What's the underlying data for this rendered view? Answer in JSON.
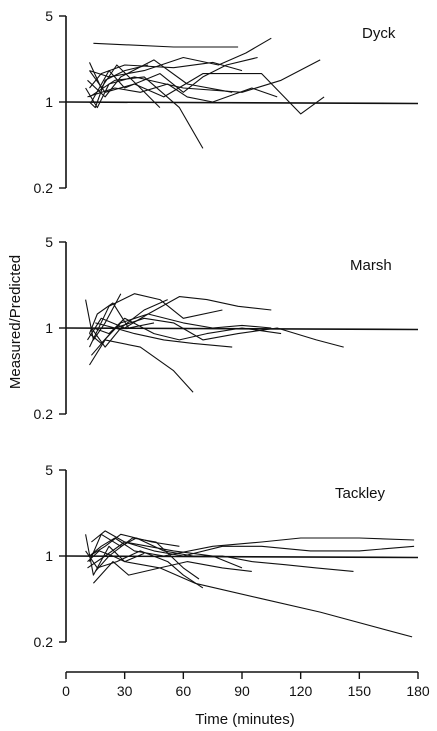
{
  "chart_data": [
    {
      "type": "line",
      "panel_label": "Dyck",
      "y_scale": "log",
      "ylim": [
        0.2,
        5
      ],
      "yticks": [
        0.2,
        1,
        5
      ],
      "xlim": [
        0,
        180
      ],
      "reference_line": 1,
      "series": [
        {
          "x": [
            14,
            55,
            88
          ],
          "y": [
            3.0,
            2.8,
            2.8
          ]
        },
        {
          "x": [
            12,
            22,
            40,
            60,
            78,
            92,
            105
          ],
          "y": [
            1.8,
            1.6,
            1.8,
            2.3,
            2.0,
            2.5,
            3.3
          ]
        },
        {
          "x": [
            12,
            18,
            30,
            55,
            75,
            90
          ],
          "y": [
            1.3,
            1.7,
            2.0,
            1.9,
            2.1,
            1.8
          ]
        },
        {
          "x": [
            12,
            25,
            40,
            58,
            70
          ],
          "y": [
            1.1,
            1.5,
            1.6,
            0.9,
            0.42
          ]
        },
        {
          "x": [
            10,
            16,
            22,
            35,
            60,
            90,
            110,
            130
          ],
          "y": [
            1.3,
            0.9,
            1.4,
            1.6,
            1.3,
            1.2,
            1.5,
            2.2
          ]
        },
        {
          "x": [
            12,
            20,
            35,
            50,
            70,
            100,
            120,
            132
          ],
          "y": [
            1.8,
            1.2,
            1.4,
            1.1,
            1.7,
            1.7,
            0.8,
            1.1
          ]
        },
        {
          "x": [
            11,
            20,
            28,
            45,
            62,
            85
          ],
          "y": [
            1.5,
            1.1,
            1.6,
            2.2,
            1.4,
            1.2
          ]
        },
        {
          "x": [
            12,
            18,
            26,
            38,
            48
          ],
          "y": [
            2.1,
            1.3,
            2.0,
            1.3,
            0.9
          ]
        },
        {
          "x": [
            13,
            22,
            30,
            48,
            60,
            70,
            82,
            98
          ],
          "y": [
            1.0,
            1.8,
            1.3,
            1.7,
            1.2,
            1.6,
            2.0,
            2.3
          ]
        },
        {
          "x": [
            11,
            25,
            38,
            52,
            62,
            75,
            95,
            108
          ],
          "y": [
            1.1,
            1.3,
            1.2,
            1.4,
            1.1,
            1.0,
            1.3,
            1.1
          ]
        },
        {
          "x": [
            12,
            15,
            20,
            30,
            42
          ],
          "y": [
            1.0,
            0.9,
            1.5,
            1.8,
            2.0
          ]
        }
      ]
    },
    {
      "type": "line",
      "panel_label": "Marsh",
      "y_scale": "log",
      "ylim": [
        0.2,
        5
      ],
      "yticks": [
        0.2,
        1,
        5
      ],
      "xlim": [
        0,
        180
      ],
      "reference_line": 1,
      "series": [
        {
          "x": [
            10,
            14,
            20,
            28
          ],
          "y": [
            1.7,
            0.8,
            1.1,
            1.9
          ]
        },
        {
          "x": [
            12,
            18,
            28,
            42,
            58,
            72,
            88,
            105
          ],
          "y": [
            0.9,
            0.75,
            1.1,
            1.3,
            1.8,
            1.7,
            1.5,
            1.4
          ]
        },
        {
          "x": [
            12,
            22,
            35,
            48,
            60,
            80
          ],
          "y": [
            0.7,
            1.5,
            1.9,
            1.7,
            1.2,
            1.4
          ]
        },
        {
          "x": [
            13,
            25,
            40,
            55,
            70,
            88,
            108,
            128,
            142
          ],
          "y": [
            0.6,
            1.0,
            1.2,
            1.1,
            0.8,
            0.9,
            1.0,
            0.8,
            0.7
          ]
        },
        {
          "x": [
            12,
            20,
            38,
            55,
            65
          ],
          "y": [
            0.5,
            0.8,
            0.7,
            0.45,
            0.3
          ]
        },
        {
          "x": [
            14,
            22,
            30,
            45,
            58,
            72,
            90,
            110
          ],
          "y": [
            1.0,
            0.9,
            1.2,
            0.9,
            0.8,
            0.9,
            1.0,
            0.9
          ]
        },
        {
          "x": [
            11,
            18,
            30,
            42,
            60,
            75,
            90,
            105
          ],
          "y": [
            0.8,
            1.2,
            1.0,
            1.3,
            1.1,
            1.0,
            1.05,
            1.0
          ]
        },
        {
          "x": [
            15,
            25,
            35,
            50,
            65,
            85
          ],
          "y": [
            1.1,
            1.0,
            0.9,
            0.8,
            0.75,
            0.7
          ]
        },
        {
          "x": [
            12,
            16,
            24,
            32,
            45
          ],
          "y": [
            0.9,
            1.3,
            1.6,
            1.0,
            1.1
          ]
        },
        {
          "x": [
            13,
            20,
            28,
            40,
            52
          ],
          "y": [
            1.0,
            0.7,
            1.0,
            1.4,
            1.7
          ]
        }
      ]
    },
    {
      "type": "line",
      "panel_label": "Tackley",
      "y_scale": "log",
      "ylim": [
        0.2,
        5
      ],
      "yticks": [
        0.2,
        1,
        5
      ],
      "xlim": [
        0,
        180
      ],
      "reference_line": 1,
      "series": [
        {
          "x": [
            10,
            14,
            22,
            30,
            48,
            66,
            100,
            130,
            177
          ],
          "y": [
            1.5,
            0.7,
            1.2,
            0.9,
            0.8,
            0.6,
            0.45,
            0.35,
            0.22
          ]
        },
        {
          "x": [
            12,
            18,
            25,
            35,
            50,
            75,
            100,
            120,
            150,
            178
          ],
          "y": [
            1.0,
            1.2,
            1.4,
            1.1,
            1.0,
            1.2,
            1.3,
            1.4,
            1.4,
            1.35
          ]
        },
        {
          "x": [
            11,
            20,
            30,
            45,
            60,
            80,
            100,
            125,
            150,
            178
          ],
          "y": [
            0.8,
            1.0,
            1.3,
            1.1,
            1.0,
            1.2,
            1.2,
            1.1,
            1.1,
            1.2
          ]
        },
        {
          "x": [
            14,
            24,
            32,
            48,
            62,
            80,
            95
          ],
          "y": [
            0.6,
            0.9,
            0.7,
            0.8,
            0.9,
            0.8,
            0.75
          ]
        },
        {
          "x": [
            12,
            18,
            28,
            36,
            50,
            65,
            80,
            95,
            112,
            128,
            147
          ],
          "y": [
            0.9,
            1.5,
            1.2,
            1.4,
            1.1,
            1.0,
            1.0,
            0.9,
            0.85,
            0.8,
            0.75
          ]
        },
        {
          "x": [
            10,
            16,
            26,
            38,
            52,
            60,
            70
          ],
          "y": [
            1.1,
            0.8,
            0.9,
            1.1,
            0.9,
            0.7,
            0.55
          ]
        },
        {
          "x": [
            13,
            20,
            30,
            42,
            55,
            75,
            90
          ],
          "y": [
            1.3,
            1.6,
            1.3,
            1.2,
            1.1,
            1.0,
            0.8
          ]
        },
        {
          "x": [
            15,
            22,
            34,
            46,
            60,
            68
          ],
          "y": [
            0.75,
            1.0,
            1.4,
            1.3,
            0.8,
            0.65
          ]
        },
        {
          "x": [
            11,
            17,
            24,
            30,
            40
          ],
          "y": [
            0.9,
            1.1,
            1.0,
            0.9,
            1.05
          ]
        },
        {
          "x": [
            12,
            20,
            28,
            44,
            58
          ],
          "y": [
            1.0,
            1.2,
            1.5,
            1.3,
            1.2
          ]
        }
      ]
    }
  ],
  "axes": {
    "ylabel": "Measured/Predicted",
    "xlabel": "Time (minutes)",
    "xticks": [
      0,
      30,
      60,
      90,
      120,
      150,
      180
    ],
    "xtick_labels": [
      "0",
      "30",
      "60",
      "90",
      "120",
      "150",
      "180"
    ],
    "ytick_labels": [
      "5",
      "1",
      "0.2"
    ]
  },
  "colors": {
    "line": "#111111",
    "background": "#ffffff"
  }
}
